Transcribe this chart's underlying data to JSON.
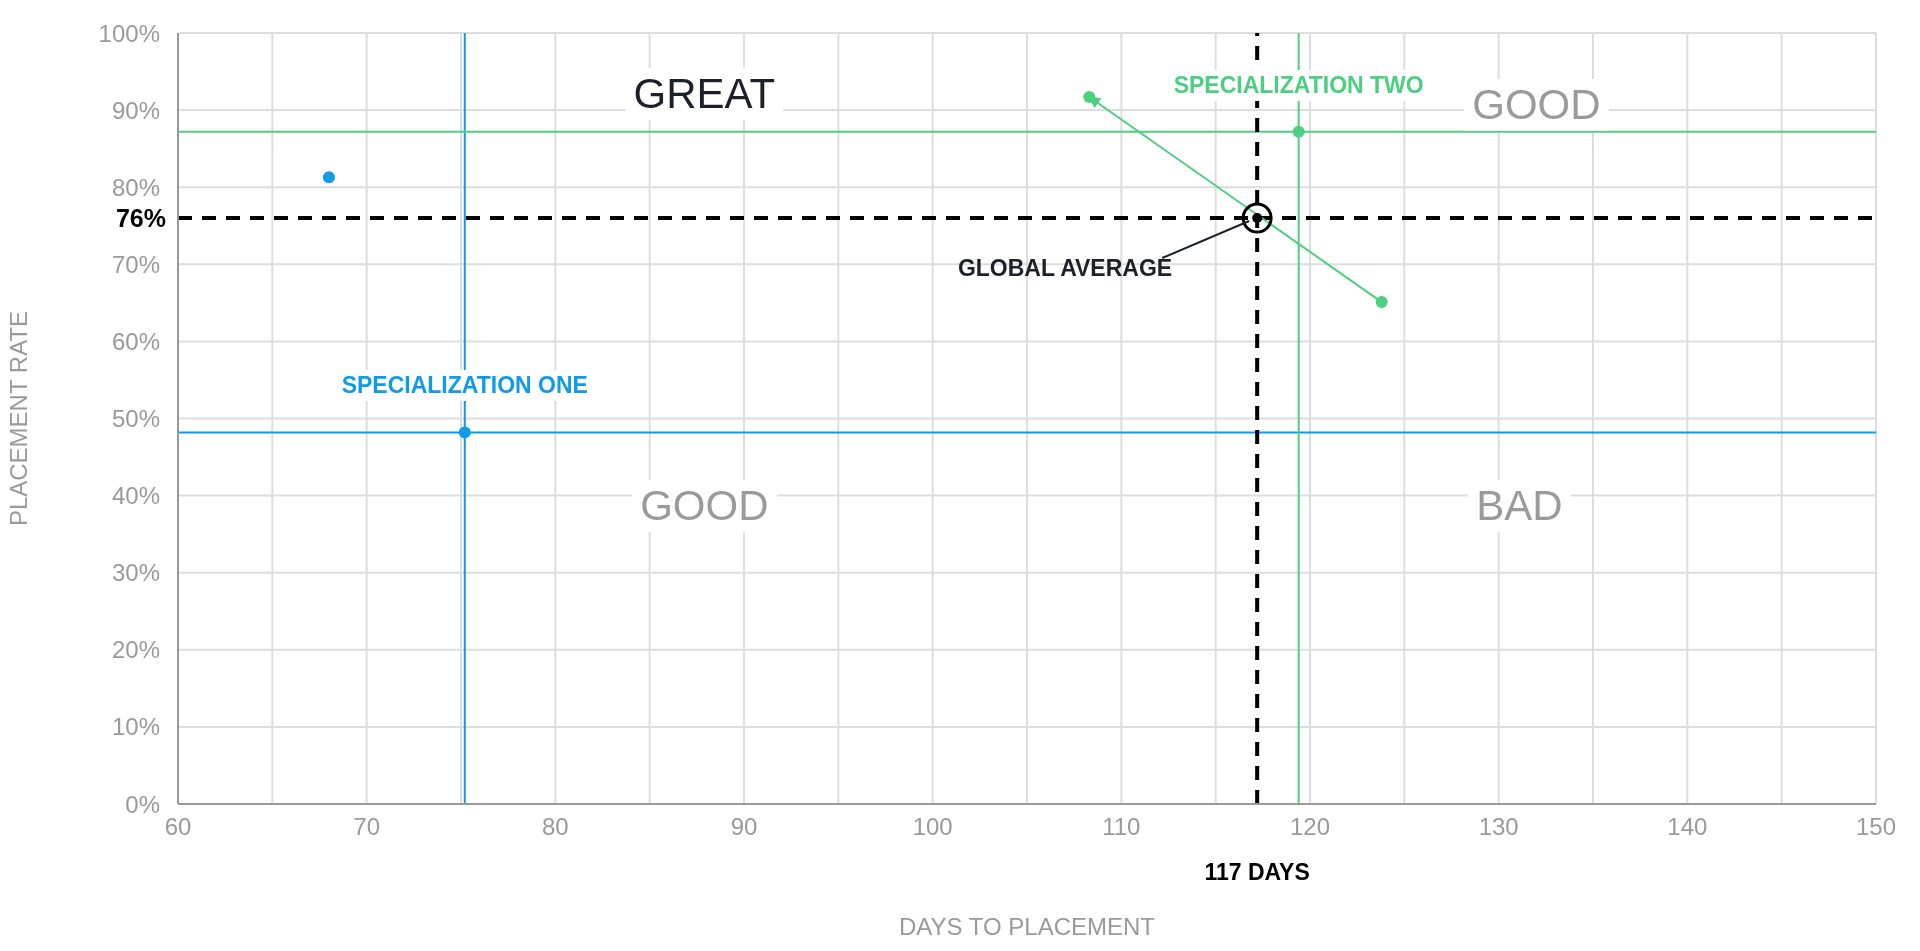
{
  "chart_data": {
    "type": "scatter",
    "xlabel": "DAYS TO PLACEMENT",
    "ylabel": "PLACEMENT RATE",
    "xlim": [
      60,
      150
    ],
    "xticks": [
      60,
      {
        "value": 65,
        "label": null
      },
      70,
      {
        "value": 75,
        "label": null
      },
      80,
      {
        "value": 85,
        "label": null
      },
      90,
      {
        "value": 95,
        "label": null
      },
      100,
      {
        "value": 105,
        "label": null
      },
      110,
      {
        "value": 115,
        "label": null
      },
      120,
      {
        "value": 125,
        "label": null
      },
      130,
      {
        "value": 135,
        "label": null
      },
      140,
      {
        "value": 145,
        "label": null
      },
      150
    ],
    "ylim": [
      0,
      100
    ],
    "yticks": [
      {
        "value": 0,
        "label": "0%"
      },
      {
        "value": 10,
        "label": "10%"
      },
      {
        "value": 20,
        "label": "20%"
      },
      {
        "value": 30,
        "label": "30%"
      },
      {
        "value": 40,
        "label": "40%"
      },
      {
        "value": 50,
        "label": "50%"
      },
      {
        "value": 60,
        "label": "60%"
      },
      {
        "value": 70,
        "label": "70%"
      },
      {
        "value": 80,
        "label": "80%"
      },
      {
        "value": 90,
        "label": "90%"
      },
      {
        "value": 100,
        "label": "100%"
      }
    ],
    "grid": true,
    "marker": "circle",
    "series": [
      {
        "name": "SPECIALIZATION ONE",
        "color": "#0f9be8",
        "x": [
          68,
          75.2
        ],
        "values": [
          81.3,
          48.2
        ]
      },
      {
        "name": "SPECIALIZATION TWO",
        "color": "#4ccf7f",
        "x": [
          108.3,
          119.4,
          123.8
        ],
        "values": [
          91.7,
          87.2,
          65.1
        ]
      },
      {
        "type": "line",
        "color": "#4ccf7f",
        "x": [
          123.8,
          108.3
        ],
        "values": [
          65.1,
          91.7
        ],
        "marker": "none"
      }
    ],
    "ref_lines": [
      {
        "axis": "x",
        "value": 75.2,
        "color": "#0f9be8",
        "line_style": "solid"
      },
      {
        "axis": "y",
        "value": 48.2,
        "color": "#0f9be8",
        "line_style": "solid"
      },
      {
        "axis": "x",
        "value": 119.4,
        "color": "#4ccf7f",
        "line_style": "solid"
      },
      {
        "axis": "y",
        "value": 87.2,
        "color": "#4ccf7f",
        "line_style": "solid"
      },
      {
        "axis": "y",
        "value": 76,
        "label": "76%",
        "color": "#000000",
        "line_style": "dashed"
      },
      {
        "axis": "x",
        "value": 117.2,
        "label": "117 DAYS",
        "color": "#000000",
        "line_style": "dashed"
      }
    ],
    "annotations": [
      "GREAT",
      "GOOD",
      "GOOD",
      "BAD",
      {
        "text": "GLOBAL AVERAGE",
        "x": 117.2,
        "y": 76
      }
    ]
  }
}
